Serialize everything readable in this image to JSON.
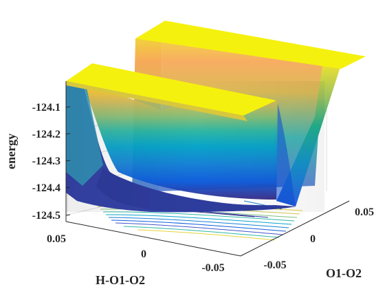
{
  "chart_data": {
    "type": "surface-3d",
    "title": "",
    "xlabel": "H-O1-O2",
    "ylabel": "O1-O2",
    "zlabel": "energy",
    "x_ticks": [
      "0.05",
      "0",
      "-0.05"
    ],
    "y_ticks": [
      "-0.05",
      "0",
      "0.05"
    ],
    "z_ticks": [
      "-124.1",
      "-124.2",
      "-124.3",
      "-124.4",
      "-124.5"
    ],
    "zlim": [
      -124.53,
      -124.0
    ],
    "plateau_energy": -124.04,
    "well_min_energy": -124.49,
    "contours_on_floor": true,
    "grid": true,
    "colormap": [
      "#352a87",
      "#0f5cdd",
      "#1481d6",
      "#06a4ca",
      "#2eb7a4",
      "#87bf77",
      "#d1bb59",
      "#fec832",
      "#f9fb0e"
    ]
  }
}
